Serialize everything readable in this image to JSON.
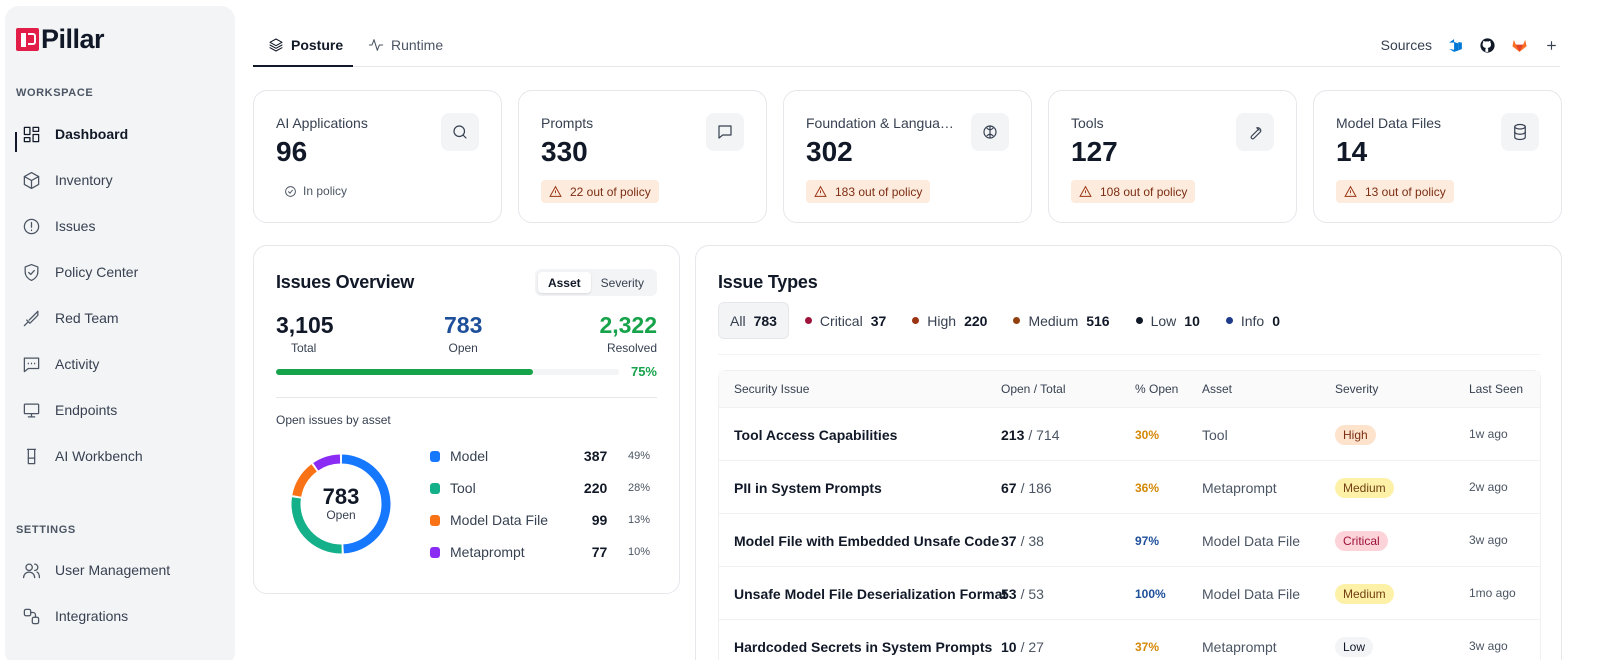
{
  "brand": {
    "name": "Pillar"
  },
  "sidebar": {
    "workspace_label": "WORKSPACE",
    "settings_label": "SETTINGS",
    "workspace_items": [
      {
        "label": "Dashboard",
        "icon": "dashboard-icon",
        "active": true
      },
      {
        "label": "Inventory",
        "icon": "box-icon"
      },
      {
        "label": "Issues",
        "icon": "alert-circle-icon"
      },
      {
        "label": "Policy Center",
        "icon": "shield-check-icon"
      },
      {
        "label": "Red Team",
        "icon": "sword-icon"
      },
      {
        "label": "Activity",
        "icon": "message-dots-icon"
      },
      {
        "label": "Endpoints",
        "icon": "monitor-icon"
      },
      {
        "label": "AI Workbench",
        "icon": "flask-icon"
      }
    ],
    "settings_items": [
      {
        "label": "User Management",
        "icon": "users-icon"
      },
      {
        "label": "Integrations",
        "icon": "integrations-icon"
      }
    ]
  },
  "tabs": [
    {
      "label": "Posture",
      "icon": "layers-icon",
      "active": true
    },
    {
      "label": "Runtime",
      "icon": "activity-icon"
    }
  ],
  "sources": {
    "label": "Sources",
    "icons": [
      "azure-devops-icon",
      "github-icon",
      "gitlab-icon",
      "plus-icon"
    ],
    "colors": {
      "azure": "#0078d4",
      "gitlab": "#fc6d26"
    }
  },
  "stats": [
    {
      "label": "AI Applications",
      "value": "96",
      "status": "In policy",
      "icon": "search-icon",
      "ok": true
    },
    {
      "label": "Prompts",
      "value": "330",
      "status": "22 out of policy",
      "icon": "message-square-icon"
    },
    {
      "label": "Foundation & Languag...",
      "value": "302",
      "status": "183 out of policy",
      "icon": "brain-icon"
    },
    {
      "label": "Tools",
      "value": "127",
      "status": "108 out of policy",
      "icon": "wrench-icon"
    },
    {
      "label": "Model Data Files",
      "value": "14",
      "status": "13 out of policy",
      "icon": "database-icon"
    }
  ],
  "overview": {
    "title": "Issues Overview",
    "toggle": [
      "Asset",
      "Severity"
    ],
    "total": {
      "value": "3,105",
      "label": "Total"
    },
    "open": {
      "value": "783",
      "label": "Open"
    },
    "resolved": {
      "value": "2,322",
      "label": "Resolved"
    },
    "resolved_pct_label": "75%",
    "resolved_fraction": 0.75,
    "sub_label": "Open issues by asset",
    "donut_value": "783",
    "donut_label": "Open",
    "colors": {
      "open": "#1e4f9a",
      "resolved": "#16a34a"
    }
  },
  "chart_data": {
    "type": "pie",
    "categories": [
      "Model",
      "Tool",
      "Model Data File",
      "Metaprompt"
    ],
    "values": [
      387,
      220,
      99,
      77
    ],
    "percent_labels": [
      "49%",
      "28%",
      "13%",
      "10%"
    ],
    "colors": [
      "#1677ff",
      "#14b08a",
      "#f97316",
      "#8b2cf5"
    ]
  },
  "issue_types": {
    "title": "Issue Types",
    "filters": [
      {
        "label": "All",
        "count": "783",
        "color": ""
      },
      {
        "label": "Critical",
        "count": "37",
        "color": "#9f1239"
      },
      {
        "label": "High",
        "count": "220",
        "color": "#9a3412"
      },
      {
        "label": "Medium",
        "count": "516",
        "color": "#92400e"
      },
      {
        "label": "Low",
        "count": "10",
        "color": "#111827"
      },
      {
        "label": "Info",
        "count": "0",
        "color": "#1e3a8a"
      }
    ],
    "columns": [
      "Security Issue",
      "Open / Total",
      "% Open",
      "Asset",
      "Severity",
      "Last Seen"
    ],
    "rows": [
      {
        "issue": "Tool Access Capabilities",
        "open": "213",
        "total": "/ 714",
        "pct": "30%",
        "asset": "Tool",
        "severity": "High",
        "seen": "1w ago"
      },
      {
        "issue": "PII in System Prompts",
        "open": "67",
        "total": "/ 186",
        "pct": "36%",
        "asset": "Metaprompt",
        "severity": "Medium",
        "seen": "2w ago"
      },
      {
        "issue": "Model File with Embedded Unsafe Code",
        "open": "37",
        "total": "/ 38",
        "pct": "97%",
        "asset": "Model Data File",
        "severity": "Critical",
        "seen": "3w ago"
      },
      {
        "issue": "Unsafe Model File Deserialization Format",
        "open": "53",
        "total": "/ 53",
        "pct": "100%",
        "asset": "Model Data File",
        "severity": "Medium",
        "seen": "1mo ago"
      },
      {
        "issue": "Hardcoded Secrets in System Prompts",
        "open": "10",
        "total": "/ 27",
        "pct": "37%",
        "asset": "Metaprompt",
        "severity": "Low",
        "seen": "3w ago"
      }
    ],
    "severity_colors": {
      "High": {
        "bg": "#fde2cc",
        "fg": "#7c2d12"
      },
      "Medium": {
        "bg": "#fdf1a8",
        "fg": "#713f12"
      },
      "Critical": {
        "bg": "#fcd3d8",
        "fg": "#9f1239"
      },
      "Low": {
        "bg": "#f3f4f6",
        "fg": "#111827"
      }
    },
    "pct_colors": {
      "warm": "#d48806",
      "cool": "#1e4f9a"
    }
  }
}
